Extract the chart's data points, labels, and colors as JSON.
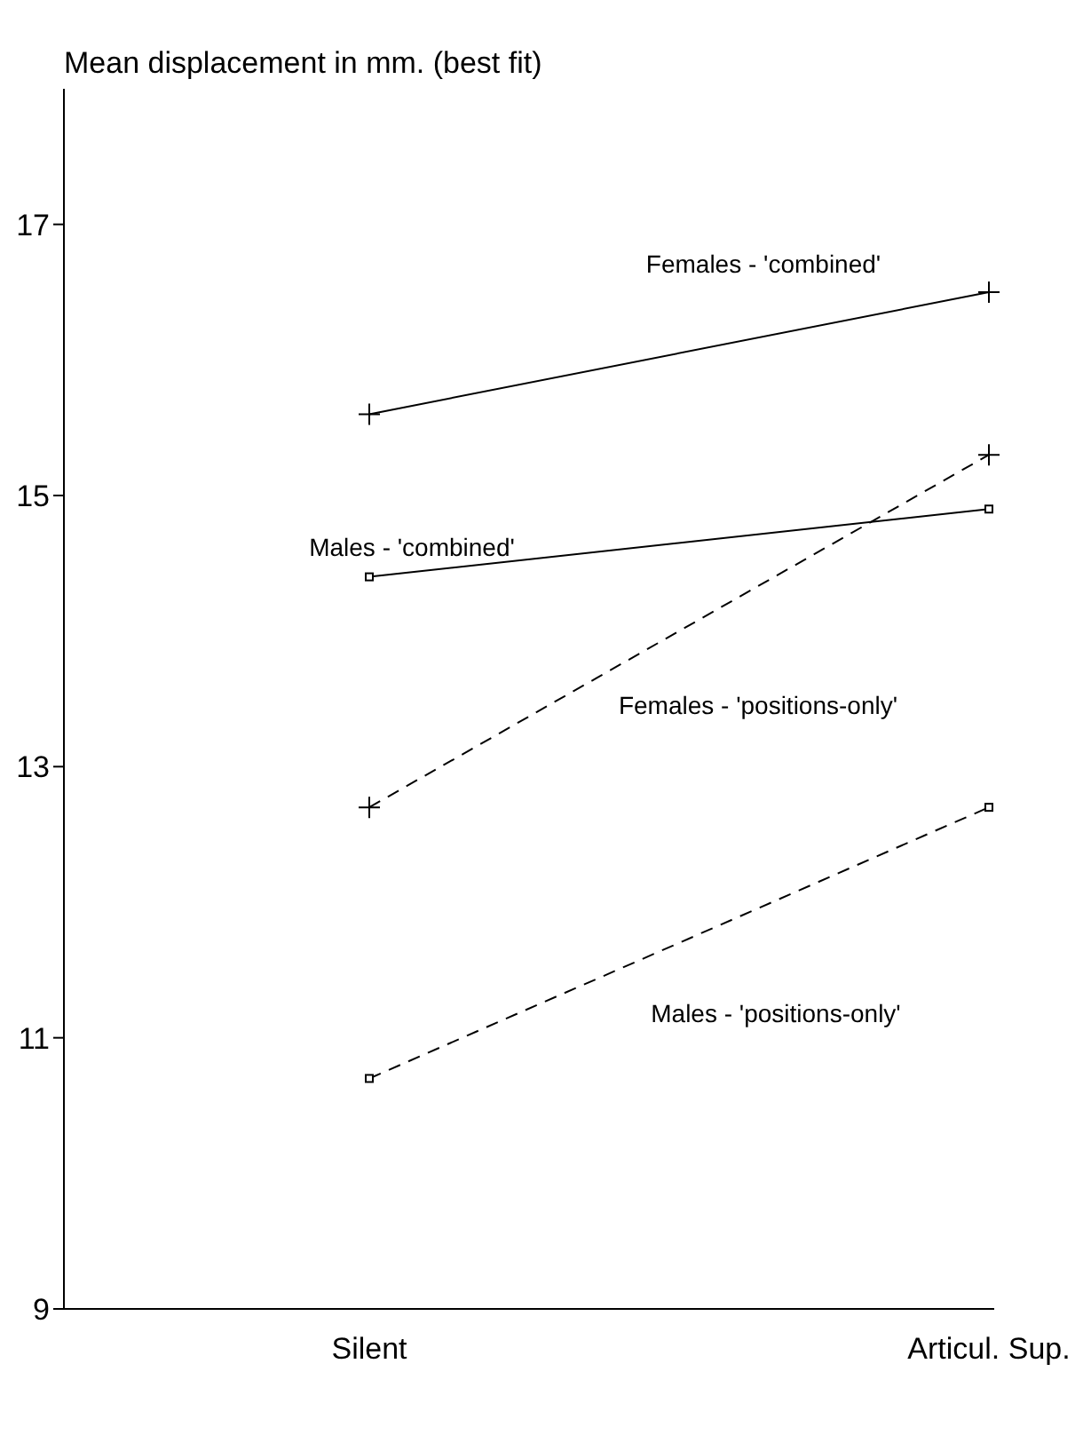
{
  "chart_data": {
    "type": "line",
    "title": "Mean displacement in mm. (best fit)",
    "categories": [
      "Silent",
      "Articul. Sup."
    ],
    "series": [
      {
        "name": "Females - 'combined'",
        "color": "#000000",
        "values": [
          15.6,
          16.5
        ],
        "marker": "cross",
        "line_style": "solid"
      },
      {
        "name": "Males - 'combined'",
        "color": "#000000",
        "values": [
          14.4,
          14.9
        ],
        "marker": "square",
        "line_style": "solid"
      },
      {
        "name": "Females - 'positions-only'",
        "color": "#000000",
        "values": [
          12.7,
          15.3
        ],
        "marker": "cross",
        "line_style": "dashed"
      },
      {
        "name": "Males - 'positions-only'",
        "color": "#000000",
        "values": [
          10.7,
          12.7
        ],
        "marker": "square",
        "line_style": "dashed"
      }
    ],
    "ylim": [
      9,
      18
    ],
    "yticks": [
      9,
      11,
      13,
      15,
      17
    ],
    "grid": false,
    "legend": false
  }
}
